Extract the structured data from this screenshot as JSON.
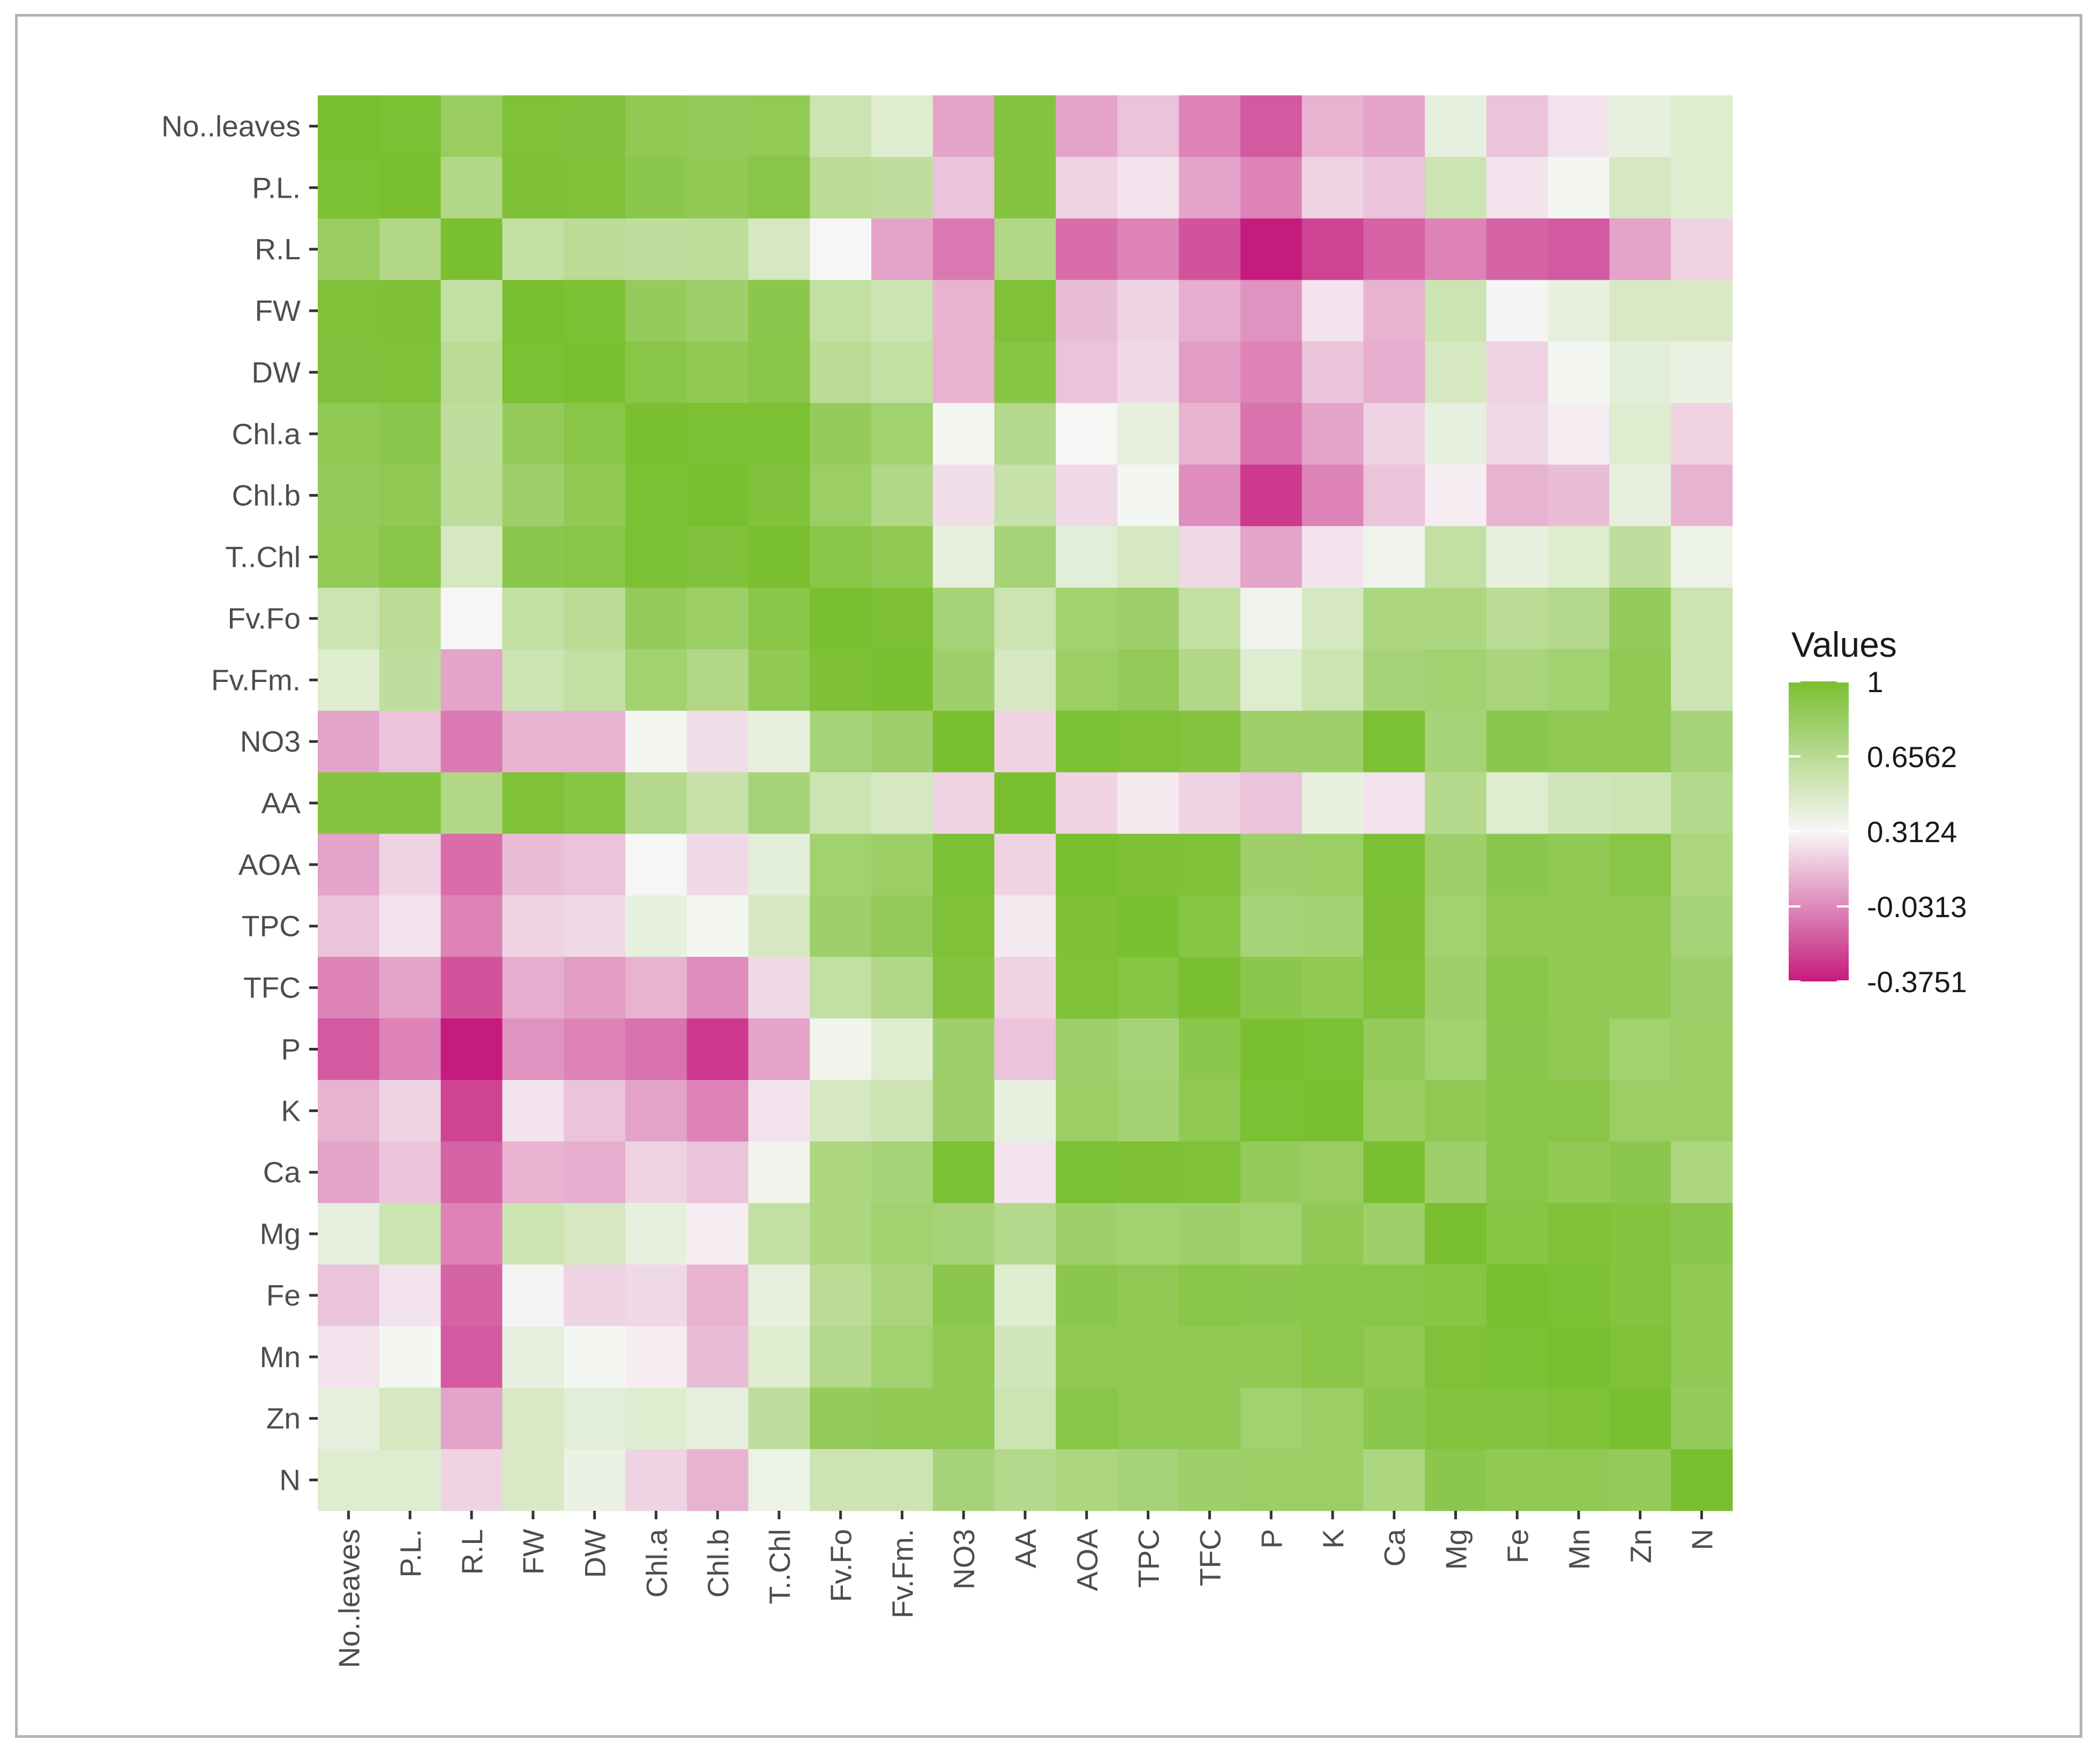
{
  "chart_data": {
    "type": "heatmap",
    "variables": [
      "No..leaves",
      "P.L.",
      "R.L",
      "FW",
      "DW",
      "Chl.a",
      "Chl.b",
      "T..Chl",
      "Fv.Fo",
      "Fv.Fm.",
      "NO3",
      "AA",
      "AOA",
      "TPC",
      "TFC",
      "P",
      "K",
      "Ca",
      "Mg",
      "Fe",
      "Mn",
      "Zn",
      "N"
    ],
    "values": [
      [
        1.0,
        0.99,
        0.83,
        0.97,
        0.96,
        0.88,
        0.86,
        0.87,
        0.55,
        0.45,
        0.05,
        0.94,
        0.05,
        0.15,
        -0.05,
        -0.18,
        0.1,
        0.05,
        0.4,
        0.15,
        0.25,
        0.4,
        0.45
      ],
      [
        0.99,
        1.0,
        0.7,
        0.98,
        0.97,
        0.9,
        0.88,
        0.92,
        0.65,
        0.62,
        0.15,
        0.94,
        0.2,
        0.25,
        0.05,
        -0.05,
        0.2,
        0.15,
        0.55,
        0.25,
        0.33,
        0.5,
        0.45
      ],
      [
        0.83,
        0.7,
        1.0,
        0.6,
        0.65,
        0.62,
        0.63,
        0.5,
        0.31,
        0.05,
        -0.08,
        0.7,
        -0.12,
        -0.05,
        -0.2,
        -0.38,
        -0.25,
        -0.15,
        -0.05,
        -0.15,
        -0.18,
        0.05,
        0.2
      ],
      [
        0.97,
        0.98,
        0.6,
        1.0,
        0.99,
        0.85,
        0.8,
        0.9,
        0.6,
        0.55,
        0.1,
        0.97,
        0.13,
        0.2,
        0.08,
        0.0,
        0.25,
        0.1,
        0.55,
        0.3,
        0.4,
        0.48,
        0.48
      ],
      [
        0.96,
        0.97,
        0.65,
        0.99,
        1.0,
        0.92,
        0.88,
        0.92,
        0.65,
        0.6,
        0.1,
        0.93,
        0.15,
        0.22,
        0.03,
        -0.05,
        0.15,
        0.08,
        0.5,
        0.2,
        0.33,
        0.42,
        0.38
      ],
      [
        0.88,
        0.9,
        0.62,
        0.85,
        0.92,
        1.0,
        0.99,
        0.99,
        0.85,
        0.78,
        0.33,
        0.68,
        0.32,
        0.4,
        0.1,
        -0.1,
        0.05,
        0.2,
        0.4,
        0.22,
        0.28,
        0.45,
        0.2
      ],
      [
        0.86,
        0.88,
        0.63,
        0.8,
        0.88,
        0.99,
        1.0,
        0.96,
        0.82,
        0.7,
        0.23,
        0.58,
        0.22,
        0.33,
        -0.02,
        -0.28,
        -0.05,
        0.15,
        0.28,
        0.1,
        0.13,
        0.4,
        0.1
      ],
      [
        0.87,
        0.92,
        0.5,
        0.9,
        0.92,
        0.99,
        0.96,
        1.0,
        0.92,
        0.88,
        0.4,
        0.75,
        0.42,
        0.5,
        0.22,
        0.05,
        0.25,
        0.35,
        0.6,
        0.4,
        0.45,
        0.62,
        0.37
      ],
      [
        0.55,
        0.65,
        0.31,
        0.6,
        0.65,
        0.85,
        0.82,
        0.92,
        1.0,
        0.98,
        0.75,
        0.55,
        0.78,
        0.8,
        0.6,
        0.35,
        0.5,
        0.72,
        0.72,
        0.65,
        0.68,
        0.85,
        0.55
      ],
      [
        0.45,
        0.62,
        0.05,
        0.55,
        0.6,
        0.78,
        0.7,
        0.88,
        0.98,
        1.0,
        0.8,
        0.5,
        0.82,
        0.86,
        0.7,
        0.45,
        0.55,
        0.75,
        0.78,
        0.74,
        0.78,
        0.88,
        0.55
      ],
      [
        0.05,
        0.15,
        -0.08,
        0.1,
        0.1,
        0.33,
        0.23,
        0.4,
        0.75,
        0.8,
        1.0,
        0.2,
        0.99,
        0.97,
        0.95,
        0.8,
        0.8,
        0.99,
        0.75,
        0.9,
        0.88,
        0.88,
        0.75
      ],
      [
        0.94,
        0.94,
        0.7,
        0.97,
        0.93,
        0.68,
        0.58,
        0.75,
        0.55,
        0.5,
        0.2,
        1.0,
        0.2,
        0.27,
        0.2,
        0.15,
        0.4,
        0.25,
        0.68,
        0.45,
        0.52,
        0.55,
        0.68
      ],
      [
        0.05,
        0.2,
        -0.12,
        0.13,
        0.15,
        0.32,
        0.22,
        0.42,
        0.78,
        0.82,
        0.99,
        0.2,
        1.0,
        0.98,
        0.97,
        0.8,
        0.82,
        0.99,
        0.8,
        0.9,
        0.88,
        0.92,
        0.72
      ],
      [
        0.15,
        0.25,
        -0.05,
        0.2,
        0.22,
        0.4,
        0.33,
        0.5,
        0.8,
        0.86,
        0.97,
        0.27,
        0.98,
        1.0,
        0.93,
        0.75,
        0.77,
        0.98,
        0.78,
        0.88,
        0.88,
        0.88,
        0.75
      ],
      [
        -0.05,
        0.05,
        -0.2,
        0.08,
        0.03,
        0.1,
        -0.02,
        0.22,
        0.6,
        0.7,
        0.95,
        0.2,
        0.97,
        0.93,
        1.0,
        0.9,
        0.88,
        0.97,
        0.8,
        0.92,
        0.88,
        0.88,
        0.8
      ],
      [
        -0.18,
        -0.05,
        -0.38,
        0.0,
        -0.05,
        -0.1,
        -0.28,
        0.05,
        0.35,
        0.45,
        0.8,
        0.15,
        0.8,
        0.75,
        0.9,
        1.0,
        0.99,
        0.85,
        0.78,
        0.9,
        0.88,
        0.78,
        0.82
      ],
      [
        0.1,
        0.2,
        -0.25,
        0.25,
        0.15,
        0.05,
        -0.05,
        0.25,
        0.5,
        0.55,
        0.8,
        0.4,
        0.82,
        0.77,
        0.88,
        0.99,
        1.0,
        0.83,
        0.88,
        0.92,
        0.92,
        0.82,
        0.82
      ],
      [
        0.05,
        0.15,
        -0.15,
        0.1,
        0.08,
        0.2,
        0.15,
        0.35,
        0.72,
        0.75,
        0.99,
        0.25,
        0.99,
        0.98,
        0.97,
        0.85,
        0.83,
        1.0,
        0.8,
        0.92,
        0.88,
        0.9,
        0.72
      ],
      [
        0.4,
        0.55,
        -0.05,
        0.55,
        0.5,
        0.4,
        0.28,
        0.6,
        0.72,
        0.78,
        0.75,
        0.68,
        0.8,
        0.78,
        0.8,
        0.78,
        0.88,
        0.8,
        1.0,
        0.93,
        0.97,
        0.95,
        0.9
      ],
      [
        0.15,
        0.25,
        -0.15,
        0.3,
        0.2,
        0.22,
        0.1,
        0.4,
        0.65,
        0.74,
        0.9,
        0.45,
        0.9,
        0.88,
        0.92,
        0.9,
        0.92,
        0.92,
        0.93,
        1.0,
        0.99,
        0.95,
        0.88
      ],
      [
        0.25,
        0.33,
        -0.18,
        0.4,
        0.33,
        0.28,
        0.13,
        0.45,
        0.68,
        0.78,
        0.88,
        0.52,
        0.88,
        0.88,
        0.88,
        0.88,
        0.92,
        0.88,
        0.97,
        0.99,
        1.0,
        0.97,
        0.88
      ],
      [
        0.4,
        0.5,
        0.05,
        0.48,
        0.42,
        0.45,
        0.4,
        0.62,
        0.85,
        0.88,
        0.88,
        0.55,
        0.92,
        0.88,
        0.88,
        0.78,
        0.82,
        0.9,
        0.95,
        0.95,
        0.97,
        1.0,
        0.85
      ],
      [
        0.45,
        0.45,
        0.2,
        0.48,
        0.38,
        0.2,
        0.1,
        0.37,
        0.55,
        0.55,
        0.75,
        0.68,
        0.72,
        0.75,
        0.8,
        0.82,
        0.82,
        0.72,
        0.9,
        0.88,
        0.88,
        0.85,
        1.0
      ]
    ],
    "color_scale": {
      "low": "#c51b7d",
      "mid": "#f7f7f7",
      "high": "#7abf30",
      "min": -0.3751,
      "mid_value": 0.3124,
      "max": 1
    },
    "legend": {
      "title": "Values",
      "breaks": [
        1,
        0.6562,
        0.3124,
        -0.0313,
        -0.3751
      ],
      "labels": [
        "1",
        "0.6562",
        "0.3124",
        "-0.0313",
        "-0.3751"
      ],
      "position": "right"
    },
    "title": "",
    "xlabel": "",
    "ylabel": ""
  }
}
